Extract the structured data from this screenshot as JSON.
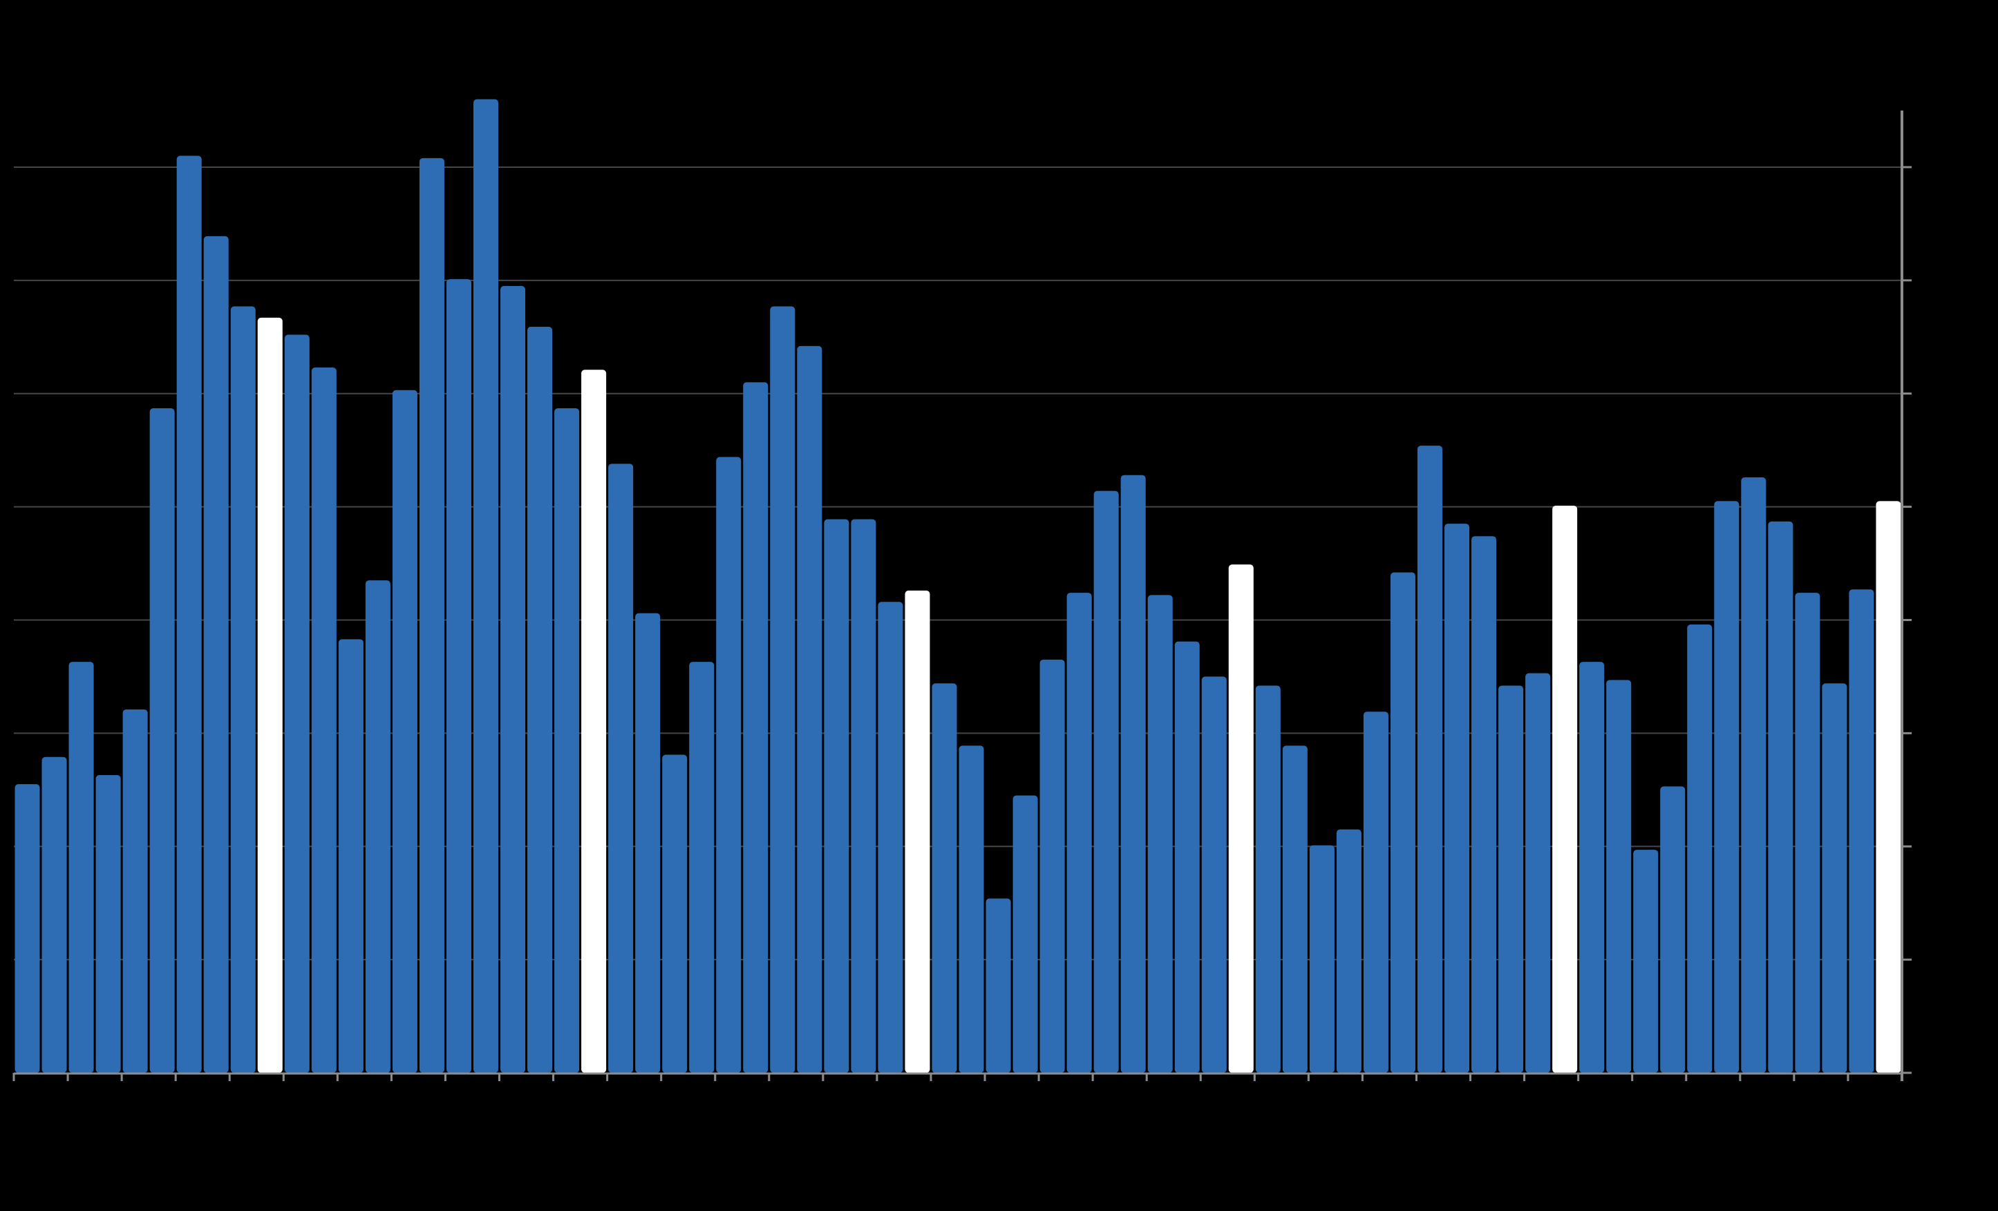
{
  "chart_data": {
    "type": "bar",
    "title": "",
    "xlabel": "",
    "ylabel": "",
    "ylim": [
      0,
      8.5
    ],
    "grid": true,
    "y_axis_side": "right",
    "values": [
      2.55,
      2.79,
      3.63,
      2.63,
      3.21,
      5.87,
      8.1,
      7.39,
      6.77,
      6.67,
      6.52,
      6.23,
      3.83,
      4.35,
      6.03,
      8.08,
      7.01,
      8.6,
      6.95,
      6.59,
      5.87,
      6.21,
      5.38,
      4.06,
      2.81,
      3.63,
      5.44,
      6.1,
      6.77,
      6.42,
      4.89,
      4.89,
      4.16,
      4.26,
      3.44,
      2.89,
      1.54,
      2.45,
      3.65,
      4.24,
      5.14,
      5.28,
      4.22,
      3.81,
      3.5,
      4.49,
      3.42,
      2.89,
      2.01,
      2.15,
      3.19,
      4.42,
      5.54,
      4.85,
      4.74,
      3.42,
      3.53,
      5.01,
      3.63,
      3.47,
      1.97,
      2.53,
      3.96,
      5.05,
      5.26,
      4.87,
      4.24,
      3.44,
      4.27,
      5.05
    ],
    "highlighted_indices": [
      9,
      21,
      33,
      45,
      57,
      69
    ],
    "colors": {
      "bar": "#2E6DB4",
      "highlight": "#FFFFFF",
      "background": "#000000",
      "grid": "#555555",
      "axis": "#8C8C8C"
    }
  }
}
